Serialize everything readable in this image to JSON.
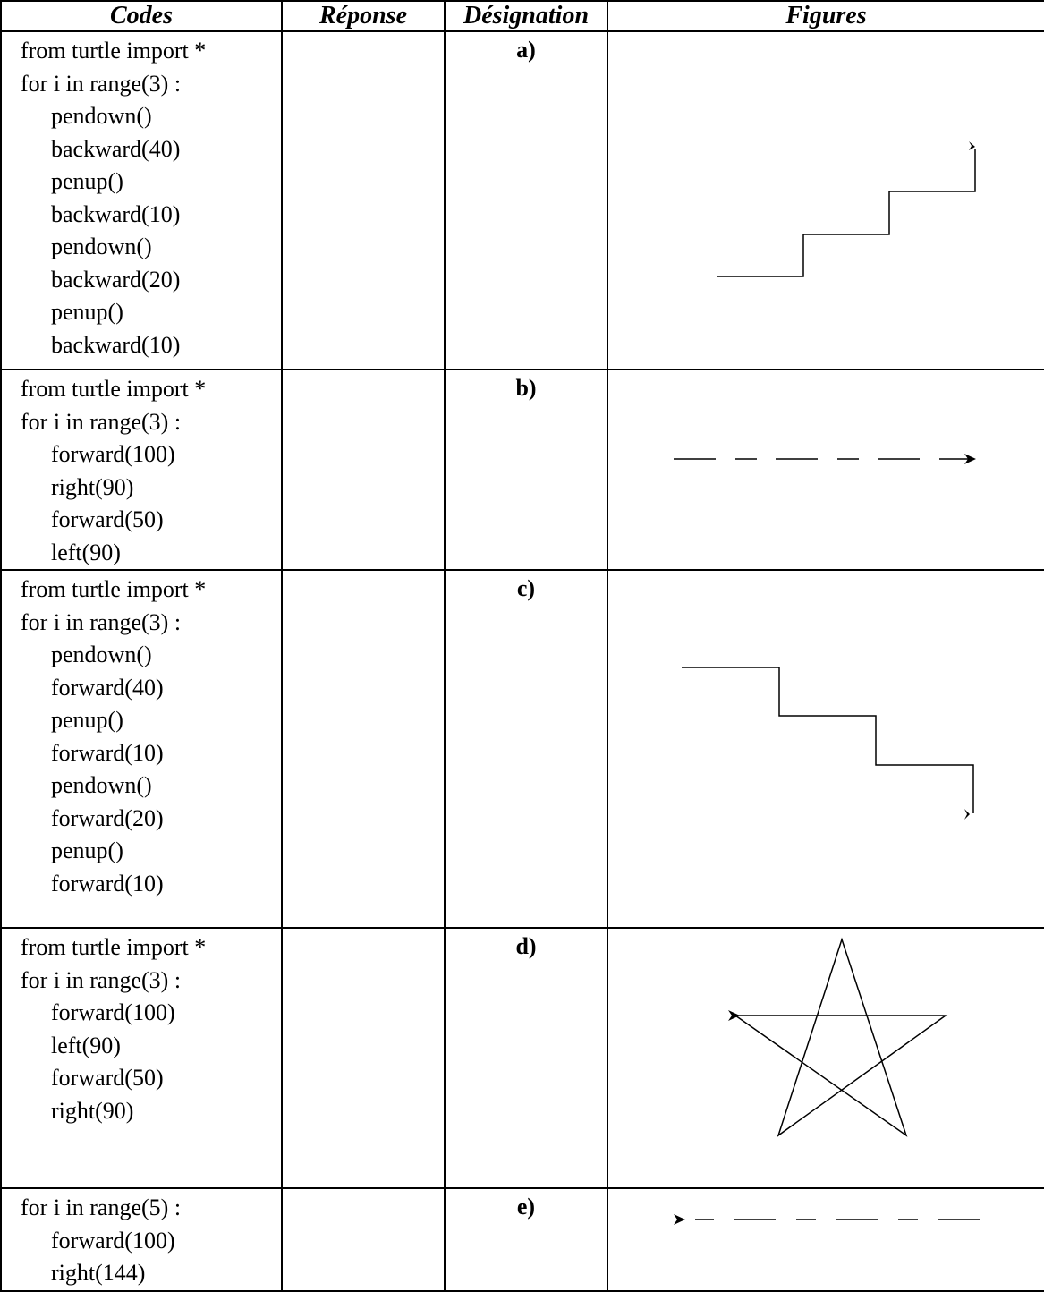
{
  "headers": {
    "codes": "Codes",
    "reponse": "Réponse",
    "designation": "Désignation",
    "figures": "Figures"
  },
  "rows": [
    {
      "lines": [
        "from turtle import *",
        "for i in range(3) :",
        "pendown()",
        "backward(40)",
        "penup()",
        "backward(10)",
        "pendown()",
        "backward(20)",
        "penup()",
        "backward(10)"
      ],
      "label": "a)",
      "figure": "staircase-up-icon"
    },
    {
      "lines": [
        "from turtle import *",
        "for i in range(3) :",
        "forward(100)",
        "right(90)",
        "forward(50)",
        "left(90)"
      ],
      "label": "b)",
      "figure": "dashed-line-long-short-icon"
    },
    {
      "lines": [
        "from turtle import *",
        "for i in range(3) :",
        "pendown()",
        "forward(40)",
        "penup()",
        "forward(10)",
        "pendown()",
        "forward(20)",
        "penup()",
        "forward(10)"
      ],
      "label": "c)",
      "figure": "staircase-down-icon"
    },
    {
      "lines": [
        "from turtle import *",
        "for i in range(3) :",
        "forward(100)",
        "left(90)",
        "forward(50)",
        "right(90)"
      ],
      "label": "d)",
      "figure": "star-icon"
    },
    {
      "lines": [
        "for i in range(5) :",
        "forward(100)",
        "right(144)"
      ],
      "label": "e)",
      "figure": "dashed-line-short-long-icon"
    }
  ]
}
